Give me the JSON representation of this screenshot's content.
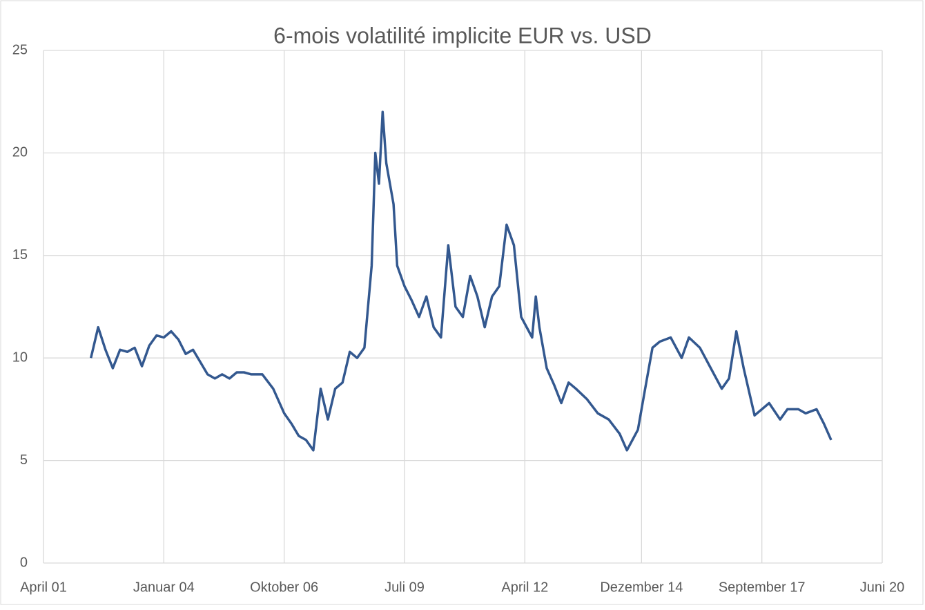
{
  "chart_data": {
    "type": "line",
    "title": "6-mois volatilité implicite EUR vs. USD",
    "x": [
      "2002-05",
      "2002-07",
      "2002-09",
      "2002-11",
      "2003-01",
      "2003-03",
      "2003-05",
      "2003-07",
      "2003-09",
      "2003-11",
      "2004-01",
      "2004-03",
      "2004-05",
      "2004-07",
      "2004-09",
      "2004-11",
      "2005-01",
      "2005-03",
      "2005-05",
      "2005-07",
      "2005-09",
      "2005-11",
      "2006-01",
      "2006-04",
      "2006-07",
      "2006-10",
      "2006-12",
      "2007-02",
      "2007-04",
      "2007-06",
      "2007-08",
      "2007-10",
      "2007-12",
      "2008-02",
      "2008-04",
      "2008-06",
      "2008-08",
      "2008-10",
      "2008-11",
      "2008-12",
      "2009-01",
      "2009-02",
      "2009-04",
      "2009-05",
      "2009-07",
      "2009-09",
      "2009-11",
      "2010-01",
      "2010-03",
      "2010-05",
      "2010-07",
      "2010-09",
      "2010-11",
      "2011-01",
      "2011-03",
      "2011-05",
      "2011-07",
      "2011-09",
      "2011-11",
      "2012-01",
      "2012-03",
      "2012-06",
      "2012-07",
      "2012-08",
      "2012-10",
      "2012-12",
      "2013-02",
      "2013-04",
      "2013-06",
      "2013-09",
      "2013-12",
      "2014-03",
      "2014-06",
      "2014-08",
      "2014-11",
      "2015-01",
      "2015-03",
      "2015-05",
      "2015-08",
      "2015-11",
      "2016-01",
      "2016-04",
      "2016-07",
      "2016-10",
      "2016-12",
      "2017-02",
      "2017-04",
      "2017-07",
      "2017-09",
      "2017-11",
      "2018-02",
      "2018-04",
      "2018-07",
      "2018-09",
      "2018-12",
      "2019-02",
      "2019-04"
    ],
    "series": [
      {
        "name": "EUR vs. USD",
        "color": "#33588f",
        "values": [
          10.0,
          11.5,
          10.4,
          9.5,
          10.4,
          10.3,
          10.5,
          9.6,
          10.6,
          11.1,
          11.0,
          11.3,
          10.9,
          10.2,
          10.4,
          9.8,
          9.2,
          9.0,
          9.2,
          9.0,
          9.3,
          9.3,
          9.2,
          9.2,
          8.5,
          7.3,
          6.8,
          6.2,
          6.0,
          5.5,
          8.5,
          7.0,
          8.5,
          8.8,
          10.3,
          10.0,
          10.5,
          14.5,
          20.0,
          18.5,
          22.0,
          19.5,
          17.5,
          14.5,
          13.5,
          12.8,
          12.0,
          13.0,
          11.5,
          11.0,
          15.5,
          12.5,
          12.0,
          14.0,
          13.0,
          11.5,
          13.0,
          13.5,
          16.5,
          15.5,
          12.0,
          11.0,
          13.0,
          11.5,
          9.5,
          8.7,
          7.8,
          8.8,
          8.5,
          8.0,
          7.3,
          7.0,
          6.3,
          5.5,
          6.5,
          8.5,
          10.5,
          10.8,
          11.0,
          10.0,
          11.0,
          10.5,
          9.5,
          8.5,
          9.0,
          11.3,
          9.5,
          7.2,
          7.5,
          7.8,
          7.0,
          7.5,
          7.5,
          7.3,
          7.5,
          6.8,
          6.0
        ]
      }
    ],
    "xlim": [
      "2001-04",
      "2020-06"
    ],
    "xticks": [
      {
        "value": "2001-04",
        "label": "April 01"
      },
      {
        "value": "2004-01",
        "label": "Januar 04"
      },
      {
        "value": "2006-10",
        "label": "Oktober 06"
      },
      {
        "value": "2009-07",
        "label": "Juli 09"
      },
      {
        "value": "2012-04",
        "label": "April 12"
      },
      {
        "value": "2014-12",
        "label": "Dezember 14"
      },
      {
        "value": "2017-09",
        "label": "September 17"
      },
      {
        "value": "2020-06",
        "label": "Juni 20"
      }
    ],
    "ylim": [
      0,
      25
    ],
    "yticks": [
      0,
      5,
      10,
      15,
      20,
      25
    ],
    "grid": true
  }
}
